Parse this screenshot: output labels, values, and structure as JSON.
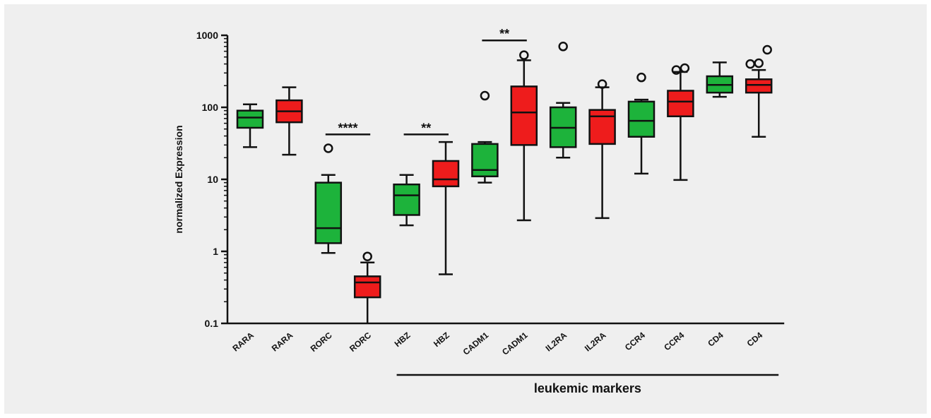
{
  "chart_data": {
    "type": "box",
    "ylabel": "normalized Expression",
    "yscale": "log",
    "ylim": [
      0.1,
      1000
    ],
    "yticks": [
      "0.1",
      "1",
      "10",
      "100",
      "1000"
    ],
    "grid": false,
    "legend": "none",
    "colors": {
      "green": "#1db33b",
      "red": "#ee1c1c"
    },
    "boxes": [
      {
        "label": "RARA",
        "color": "green",
        "whisker_low": 28,
        "q1": 52,
        "median": 72,
        "q3": 90,
        "whisker_high": 110,
        "outliers": []
      },
      {
        "label": "RARA",
        "color": "red",
        "whisker_low": 22,
        "q1": 62,
        "median": 88,
        "q3": 125,
        "whisker_high": 190,
        "outliers": []
      },
      {
        "label": "RORC",
        "color": "green",
        "whisker_low": 0.95,
        "q1": 1.3,
        "median": 2.1,
        "q3": 9,
        "whisker_high": 11.5,
        "outliers": [
          27
        ]
      },
      {
        "label": "RORC",
        "color": "red",
        "whisker_low": 0.1,
        "q1": 0.23,
        "median": 0.37,
        "q3": 0.45,
        "whisker_high": 0.7,
        "outliers": [
          0.85
        ]
      },
      {
        "label": "HBZ",
        "color": "green",
        "whisker_low": 2.3,
        "q1": 3.2,
        "median": 6,
        "q3": 8.5,
        "whisker_high": 11.5,
        "outliers": []
      },
      {
        "label": "HBZ",
        "color": "red",
        "whisker_low": 0.48,
        "q1": 8,
        "median": 10,
        "q3": 18,
        "whisker_high": 33,
        "outliers": []
      },
      {
        "label": "CADM1",
        "color": "green",
        "whisker_low": 9,
        "q1": 11,
        "median": 13.5,
        "q3": 31,
        "whisker_high": 33,
        "outliers": [
          145
        ]
      },
      {
        "label": "CADM1",
        "color": "red",
        "whisker_low": 2.7,
        "q1": 30,
        "median": 85,
        "q3": 195,
        "whisker_high": 450,
        "outliers": [
          530
        ]
      },
      {
        "label": "IL2RA",
        "color": "green",
        "whisker_low": 20,
        "q1": 28,
        "median": 52,
        "q3": 100,
        "whisker_high": 115,
        "outliers": [
          700
        ]
      },
      {
        "label": "IL2RA",
        "color": "red",
        "whisker_low": 2.9,
        "q1": 31,
        "median": 75,
        "q3": 92,
        "whisker_high": 190,
        "outliers": [
          210
        ]
      },
      {
        "label": "CCR4",
        "color": "green",
        "whisker_low": 12,
        "q1": 39,
        "median": 65,
        "q3": 120,
        "whisker_high": 128,
        "outliers": [
          260
        ]
      },
      {
        "label": "CCR4",
        "color": "red",
        "whisker_low": 9.8,
        "q1": 75,
        "median": 120,
        "q3": 170,
        "whisker_high": 310,
        "outliers": [
          330,
          350
        ]
      },
      {
        "label": "CD4",
        "color": "green",
        "whisker_low": 140,
        "q1": 160,
        "median": 205,
        "q3": 270,
        "whisker_high": 420,
        "outliers": []
      },
      {
        "label": "CD4",
        "color": "red",
        "whisker_low": 39,
        "q1": 160,
        "median": 205,
        "q3": 245,
        "whisker_high": 330,
        "outliers": [
          400,
          410,
          630
        ]
      }
    ],
    "significance": [
      {
        "label": "****",
        "from": 3,
        "to": 4,
        "y": 42
      },
      {
        "label": "**",
        "from": 5,
        "to": 6,
        "y": 42
      },
      {
        "label": "**",
        "from": 7,
        "to": 8,
        "y": 850
      }
    ],
    "group": {
      "label": "leukemic markers",
      "from": 5,
      "to": 14
    }
  }
}
